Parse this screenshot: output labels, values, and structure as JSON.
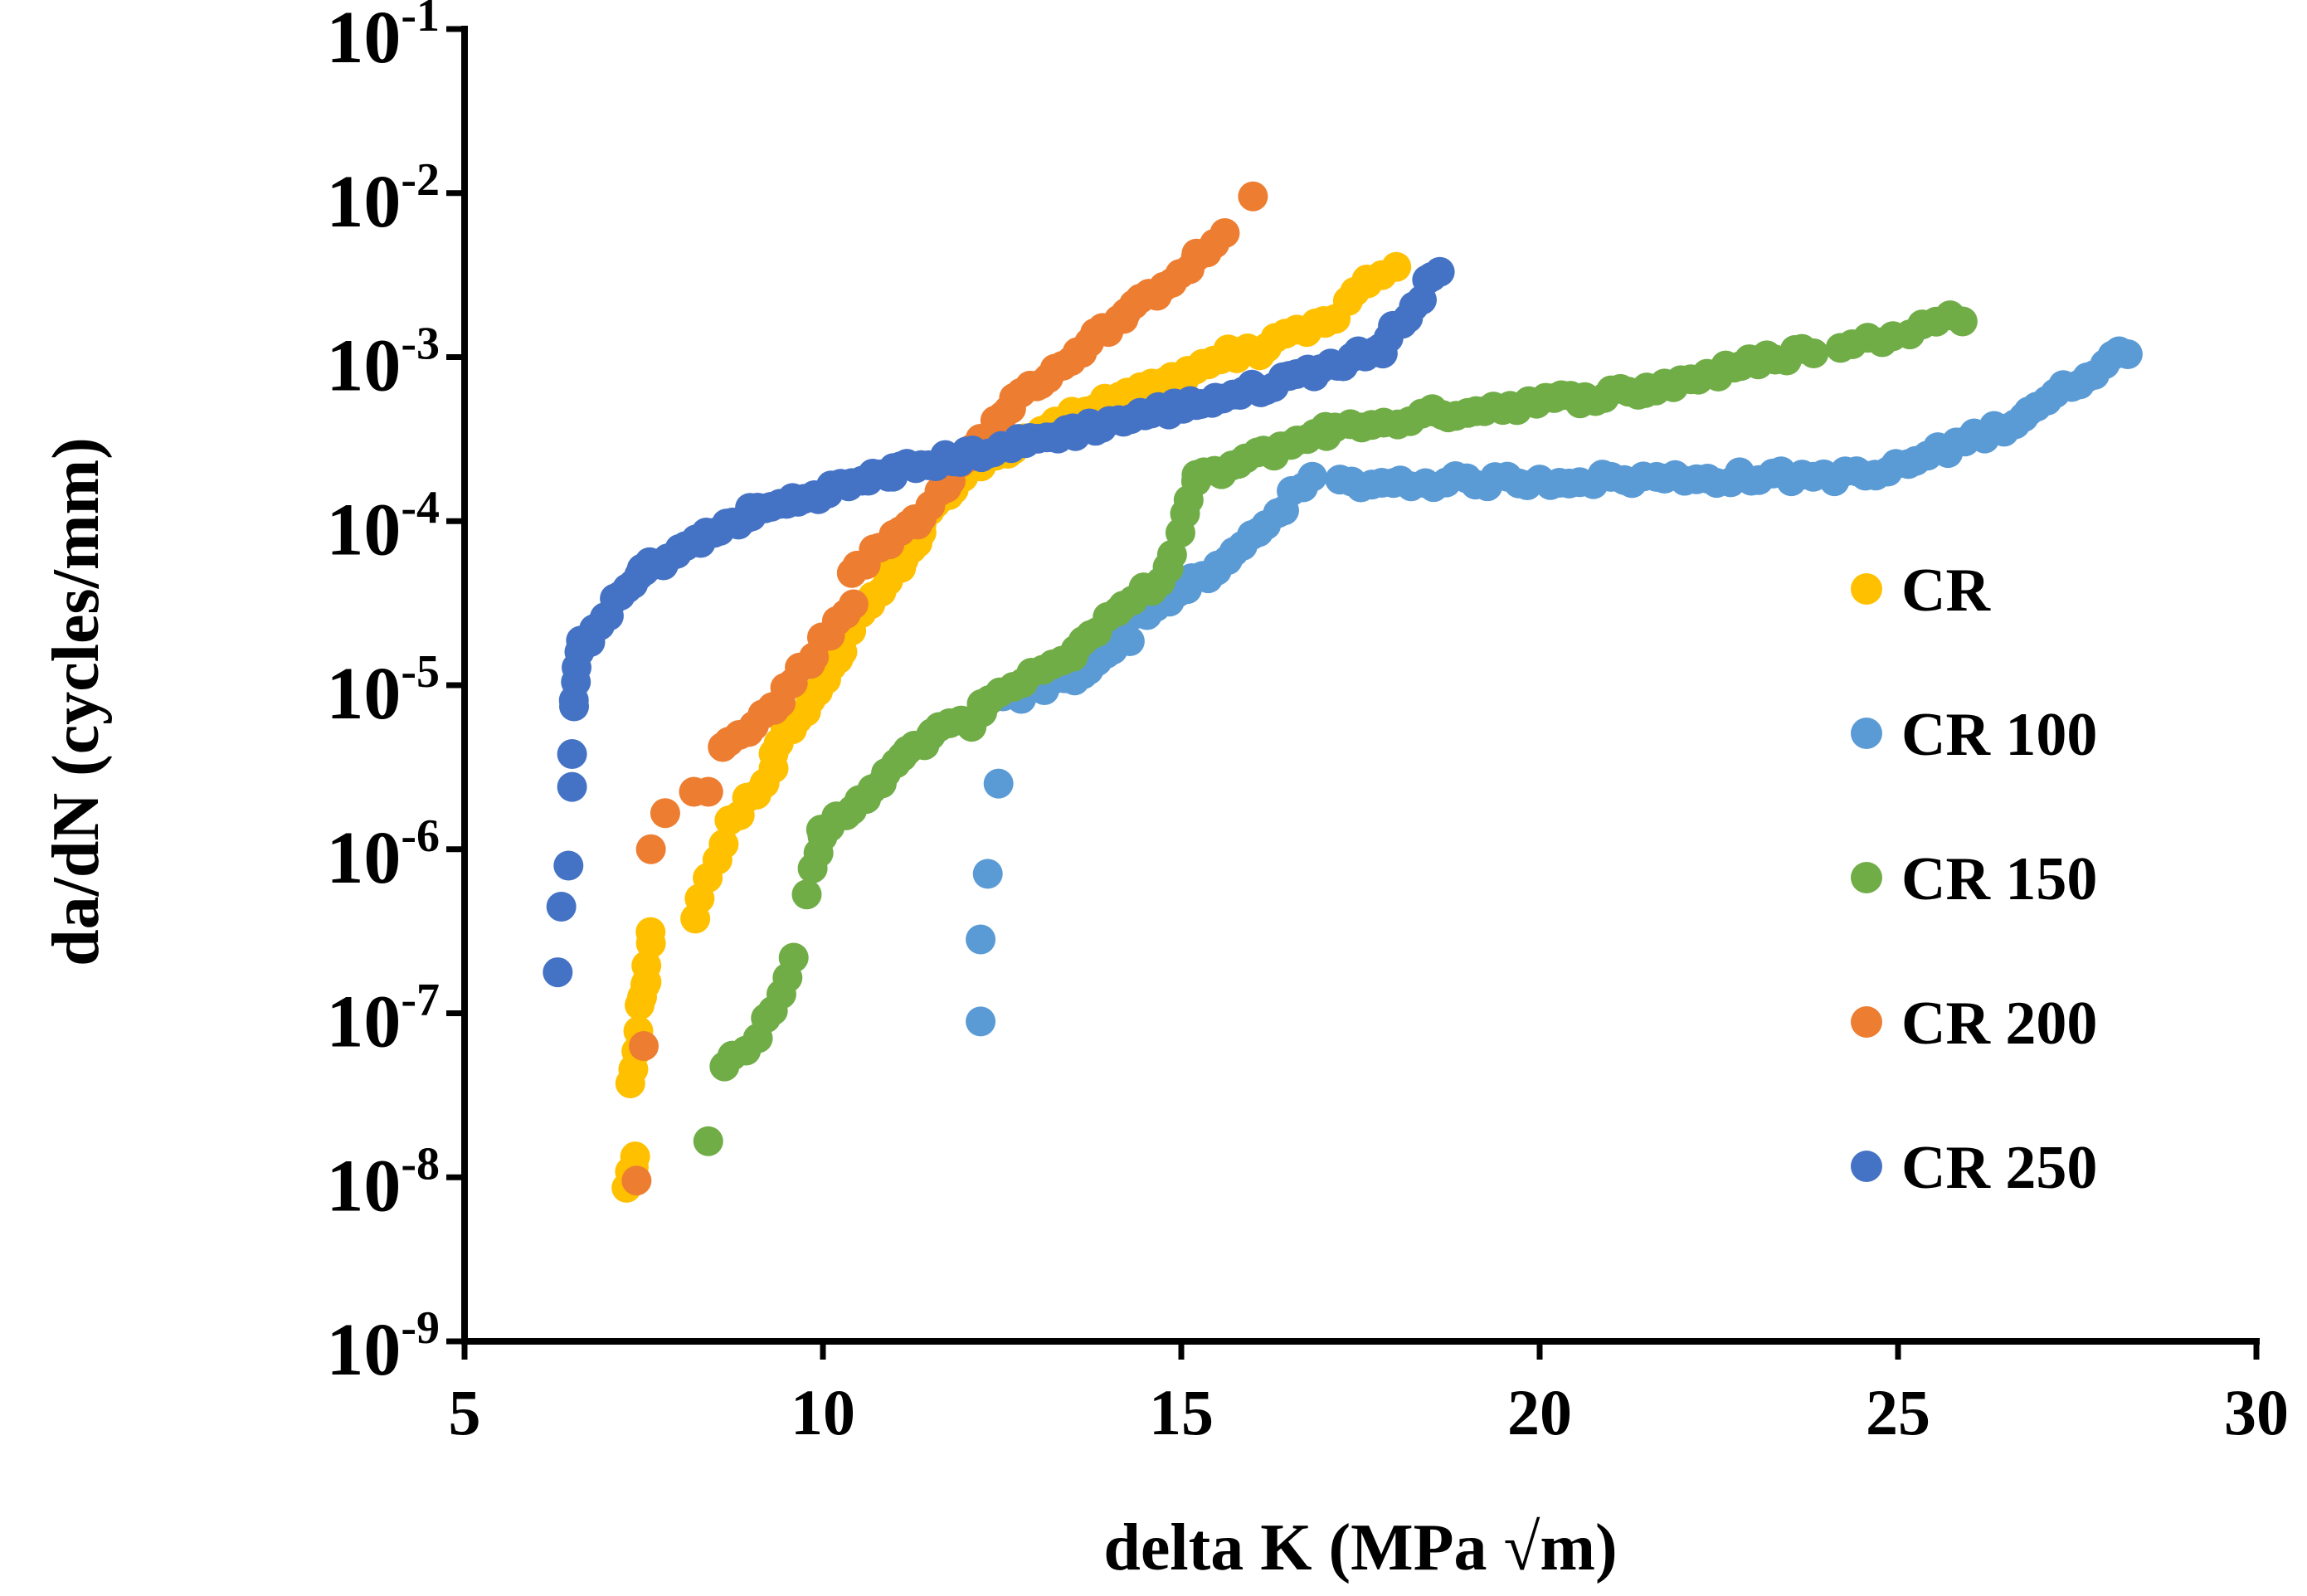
{
  "chart_data": {
    "type": "scatter",
    "title": "",
    "xlabel": "delta K (MPa √m)",
    "ylabel": "da/dN (cycles/mm)",
    "xlim": [
      5,
      30
    ],
    "ylim_log10": [
      -9,
      -1
    ],
    "yscale": "log",
    "x_ticks": [
      "5",
      "10",
      "15",
      "20",
      "25",
      "30"
    ],
    "y_ticks": [
      {
        "base": "10",
        "exp": "-1"
      },
      {
        "base": "10",
        "exp": "-2"
      },
      {
        "base": "10",
        "exp": "-3"
      },
      {
        "base": "10",
        "exp": "-4"
      },
      {
        "base": "10",
        "exp": "-5"
      },
      {
        "base": "10",
        "exp": "-6"
      },
      {
        "base": "10",
        "exp": "-7"
      },
      {
        "base": "10",
        "exp": "-8"
      },
      {
        "base": "10",
        "exp": "-9"
      }
    ],
    "grid": false,
    "legend_position": "right",
    "series": [
      {
        "name": "CR",
        "color": "#FFC000",
        "segments": [
          {
            "x0": 7.25,
            "x1": 7.4,
            "y0": -8.05,
            "y1": -7.9,
            "n": 4
          },
          {
            "x0": 7.3,
            "x1": 7.5,
            "y0": -7.45,
            "y1": -6.85,
            "n": 6
          },
          {
            "x0": 7.5,
            "x1": 7.6,
            "y0": -6.9,
            "y1": -6.5,
            "n": 5
          },
          {
            "x0": 8.2,
            "x1": 8.6,
            "y0": -6.4,
            "y1": -5.95,
            "n": 5
          },
          {
            "x0": 8.7,
            "x1": 9.3,
            "y0": -5.85,
            "y1": -5.5,
            "n": 6
          },
          {
            "x0": 9.3,
            "x1": 10.3,
            "y0": -5.4,
            "y1": -4.8,
            "n": 12
          },
          {
            "x0": 10.3,
            "x1": 11.4,
            "y0": -4.7,
            "y1": -4.1,
            "n": 14
          },
          {
            "x0": 11.4,
            "x1": 12.4,
            "y0": -4.0,
            "y1": -3.55,
            "n": 12
          },
          {
            "x0": 12.4,
            "x1": 14.0,
            "y0": -3.6,
            "y1": -3.25,
            "n": 20
          },
          {
            "x0": 14.0,
            "x1": 15.8,
            "y0": -3.3,
            "y1": -2.95,
            "n": 22
          },
          {
            "x0": 15.8,
            "x1": 17.0,
            "y0": -3.0,
            "y1": -2.8,
            "n": 10
          },
          {
            "x0": 17.0,
            "x1": 17.6,
            "y0": -2.8,
            "y1": -2.55,
            "n": 5
          },
          {
            "x0": 17.6,
            "x1": 18.0,
            "y0": -2.55,
            "y1": -2.45,
            "n": 3
          }
        ]
      },
      {
        "name": "CR 100",
        "color": "#5B9BD5",
        "segments": [
          {
            "x0": 12.2,
            "x1": 12.2,
            "y0": -7.05,
            "y1": -6.55,
            "n": 2
          },
          {
            "x0": 12.3,
            "x1": 12.45,
            "y0": -6.15,
            "y1": -5.6,
            "n": 2
          },
          {
            "x0": 12.5,
            "x1": 13.5,
            "y0": -5.1,
            "y1": -4.95,
            "n": 8
          },
          {
            "x0": 13.5,
            "x1": 14.3,
            "y0": -4.95,
            "y1": -4.7,
            "n": 8
          },
          {
            "x0": 14.3,
            "x1": 15.5,
            "y0": -4.6,
            "y1": -4.3,
            "n": 12
          },
          {
            "x0": 15.5,
            "x1": 16.8,
            "y0": -4.3,
            "y1": -3.75,
            "n": 12
          },
          {
            "x0": 17.2,
            "x1": 24.7,
            "y0": -3.77,
            "y1": -3.72,
            "n": 52
          },
          {
            "x0": 24.7,
            "x1": 26.5,
            "y0": -3.72,
            "y1": -3.42,
            "n": 14
          },
          {
            "x0": 26.5,
            "x1": 28.2,
            "y0": -3.42,
            "y1": -2.95,
            "n": 16
          }
        ]
      },
      {
        "name": "CR 150",
        "color": "#70AD47",
        "segments": [
          {
            "x0": 8.4,
            "x1": 8.4,
            "y0": -7.78,
            "y1": -7.78,
            "n": 1
          },
          {
            "x0": 8.6,
            "x1": 9.1,
            "y0": -7.3,
            "y1": -7.15,
            "n": 4
          },
          {
            "x0": 9.2,
            "x1": 9.6,
            "y0": -7.05,
            "y1": -6.65,
            "n": 5
          },
          {
            "x0": 9.8,
            "x1": 10.0,
            "y0": -6.25,
            "y1": -5.95,
            "n": 4
          },
          {
            "x0": 10.0,
            "x1": 11.5,
            "y0": -5.9,
            "y1": -5.3,
            "n": 16
          },
          {
            "x0": 11.5,
            "x1": 12.2,
            "y0": -5.3,
            "y1": -5.2,
            "n": 6
          },
          {
            "x0": 12.2,
            "x1": 13.5,
            "y0": -5.1,
            "y1": -4.8,
            "n": 10
          },
          {
            "x0": 13.5,
            "x1": 14.8,
            "y0": -4.8,
            "y1": -4.3,
            "n": 12
          },
          {
            "x0": 14.8,
            "x1": 15.2,
            "y0": -4.3,
            "y1": -3.75,
            "n": 6
          },
          {
            "x0": 15.2,
            "x1": 17.0,
            "y0": -3.75,
            "y1": -3.45,
            "n": 16
          },
          {
            "x0": 17.0,
            "x1": 18.5,
            "y0": -3.45,
            "y1": -3.35,
            "n": 10
          },
          {
            "x0": 18.5,
            "x1": 21.5,
            "y0": -3.35,
            "y1": -3.2,
            "n": 26
          },
          {
            "x0": 21.5,
            "x1": 23.8,
            "y0": -3.2,
            "y1": -2.95,
            "n": 20
          },
          {
            "x0": 24.2,
            "x1": 25.9,
            "y0": -2.95,
            "y1": -2.75,
            "n": 10
          }
        ]
      },
      {
        "name": "CR 200",
        "color": "#ED7D31",
        "segments": [
          {
            "x0": 7.4,
            "x1": 7.4,
            "y0": -8.02,
            "y1": -8.02,
            "n": 1
          },
          {
            "x0": 7.5,
            "x1": 7.5,
            "y0": -7.2,
            "y1": -7.2,
            "n": 1
          },
          {
            "x0": 7.6,
            "x1": 7.8,
            "y0": -6.0,
            "y1": -5.78,
            "n": 2
          },
          {
            "x0": 8.2,
            "x1": 8.4,
            "y0": -5.65,
            "y1": -5.65,
            "n": 2
          },
          {
            "x0": 8.6,
            "x1": 9.3,
            "y0": -5.35,
            "y1": -5.15,
            "n": 7
          },
          {
            "x0": 9.3,
            "x1": 10.4,
            "y0": -5.15,
            "y1": -4.5,
            "n": 12
          },
          {
            "x0": 10.4,
            "x1": 11.3,
            "y0": -4.3,
            "y1": -4.0,
            "n": 10
          },
          {
            "x0": 11.3,
            "x1": 12.6,
            "y0": -4.0,
            "y1": -3.3,
            "n": 14
          },
          {
            "x0": 12.6,
            "x1": 14.2,
            "y0": -3.3,
            "y1": -2.75,
            "n": 18
          },
          {
            "x0": 14.2,
            "x1": 15.2,
            "y0": -2.75,
            "y1": -2.4,
            "n": 10
          },
          {
            "x0": 15.2,
            "x1": 15.6,
            "y0": -2.4,
            "y1": -2.25,
            "n": 4
          },
          {
            "x0": 16.0,
            "x1": 16.0,
            "y0": -2.02,
            "y1": -2.02,
            "n": 1
          }
        ]
      },
      {
        "name": "CR 250",
        "color": "#4472C4",
        "segments": [
          {
            "x0": 6.3,
            "x1": 6.3,
            "y0": -6.75,
            "y1": -6.75,
            "n": 1
          },
          {
            "x0": 6.35,
            "x1": 6.35,
            "y0": -6.35,
            "y1": -6.35,
            "n": 1
          },
          {
            "x0": 6.45,
            "x1": 6.45,
            "y0": -6.1,
            "y1": -6.1,
            "n": 1
          },
          {
            "x0": 6.5,
            "x1": 6.5,
            "y0": -5.62,
            "y1": -5.42,
            "n": 2
          },
          {
            "x0": 6.5,
            "x1": 6.65,
            "y0": -5.15,
            "y1": -4.75,
            "n": 6
          },
          {
            "x0": 6.65,
            "x1": 7.5,
            "y0": -4.75,
            "y1": -4.3,
            "n": 12
          },
          {
            "x0": 7.5,
            "x1": 9.0,
            "y0": -4.3,
            "y1": -3.95,
            "n": 18
          },
          {
            "x0": 9.0,
            "x1": 11.0,
            "y0": -3.95,
            "y1": -3.7,
            "n": 22
          },
          {
            "x0": 11.0,
            "x1": 13.5,
            "y0": -3.7,
            "y1": -3.45,
            "n": 26
          },
          {
            "x0": 13.5,
            "x1": 16.0,
            "y0": -3.45,
            "y1": -3.2,
            "n": 26
          },
          {
            "x0": 16.0,
            "x1": 17.8,
            "y0": -3.2,
            "y1": -2.95,
            "n": 18
          },
          {
            "x0": 17.8,
            "x1": 18.6,
            "y0": -2.95,
            "y1": -2.45,
            "n": 10
          }
        ]
      }
    ]
  }
}
